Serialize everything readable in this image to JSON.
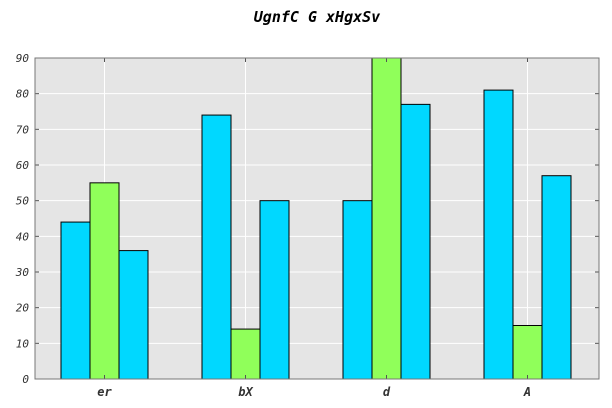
{
  "chart_data": {
    "type": "bar",
    "title": "UgnfC G xHgxSv",
    "xlabel": "",
    "ylabel": "",
    "categories": [
      "er",
      "bX",
      "d",
      "A"
    ],
    "series": [
      {
        "values": [
          44,
          74,
          50,
          81
        ],
        "color": "#00d8ff"
      },
      {
        "values": [
          55,
          14,
          90,
          15
        ],
        "color": "#90ff5a"
      },
      {
        "values": [
          36,
          50,
          77,
          57
        ],
        "color": "#00d8ff"
      }
    ],
    "ylim": [
      0,
      90
    ],
    "yticks": [
      0,
      10,
      20,
      30,
      40,
      50,
      60,
      70,
      80,
      90
    ],
    "grid": true,
    "background": "#e5e5e5",
    "grid_color": "#ffffff"
  }
}
